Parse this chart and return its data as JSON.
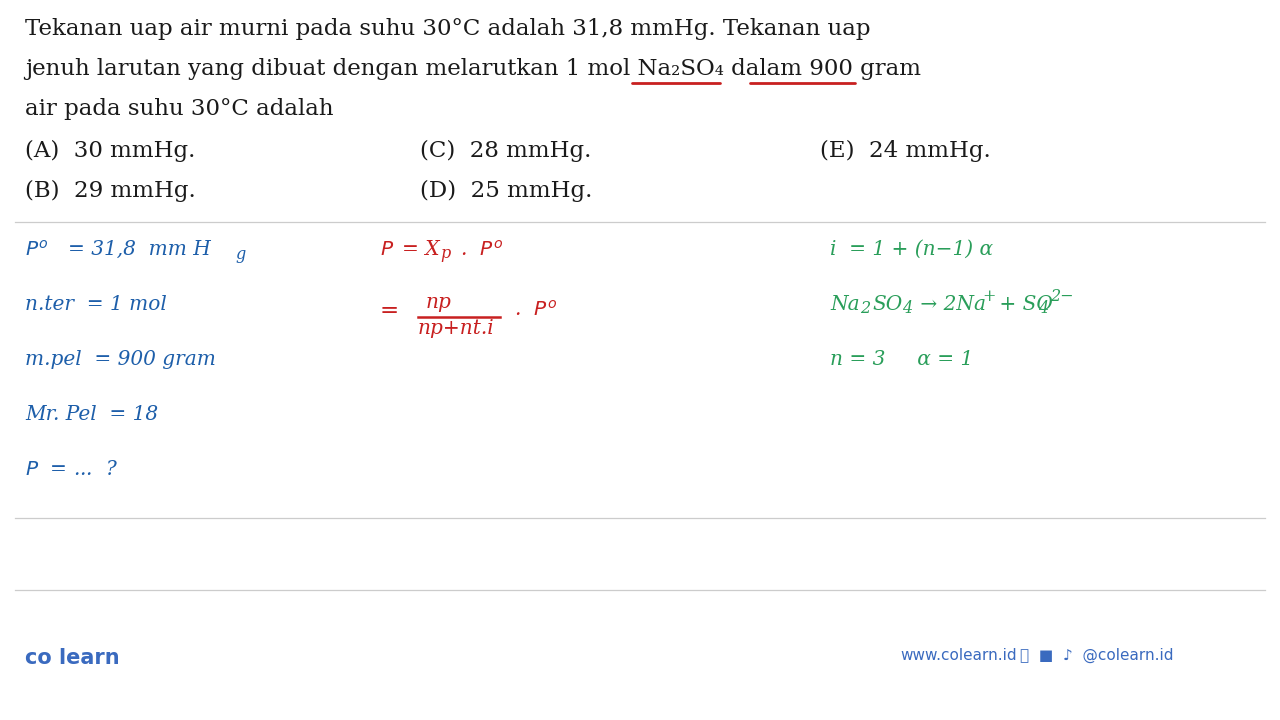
{
  "bg": "#ffffff",
  "black": "#1a1a1a",
  "blue": "#1e5faa",
  "green": "#2a9e5a",
  "red": "#c82020",
  "footer_blue": "#3a6abf",
  "divider_color": "#cccccc",
  "q_fontsize": 16.5,
  "sol_fontsize": 14.5,
  "footer_fontsize": 14,
  "line1": "Tekanan uap air murni pada suhu 30°C adalah 31,8 mmHg. Tekanan uap",
  "line2a": "jenuh larutan yang dibuat dengan melarutkan 1 mol Na",
  "line2b": "SO",
  "line2c": " dalam 900 gram",
  "line3": "air pada suhu 30°C adalah",
  "ans_A": "(A)  30 mmHg.",
  "ans_B": "(B)  29 mmHg.",
  "ans_C": "(C)  28 mmHg.",
  "ans_D": "(D)  25 mmHg.",
  "ans_E": "(E)  24 mmHg.",
  "col1_row1": "P",
  "col1_row1b": " = 31,8  mm H",
  "col1_row2": "n.ter = 1 mol",
  "col1_row3": "m.pel = 900 gram",
  "col1_row4": "Mr. Pel = 18",
  "col1_row5": "P = ... ?",
  "col2_row1a": "P",
  "col2_row1b": " = X",
  "col2_row1c": " .  P",
  "col2_frac_num": "np",
  "col2_frac_den": "np+nt.i",
  "col2_row2b": " .  P",
  "col3_row1": "i = 1 + (n−1) α",
  "col3_row2": "Na",
  "col3_row2b": "SO",
  "col3_row2c": " → 2Na",
  "col3_row2d": " + SO",
  "col3_row3": "n = 3     α = 1",
  "footer_left": "co learn",
  "footer_right": "www.colearn.id",
  "footer_social": "@colearn.id"
}
